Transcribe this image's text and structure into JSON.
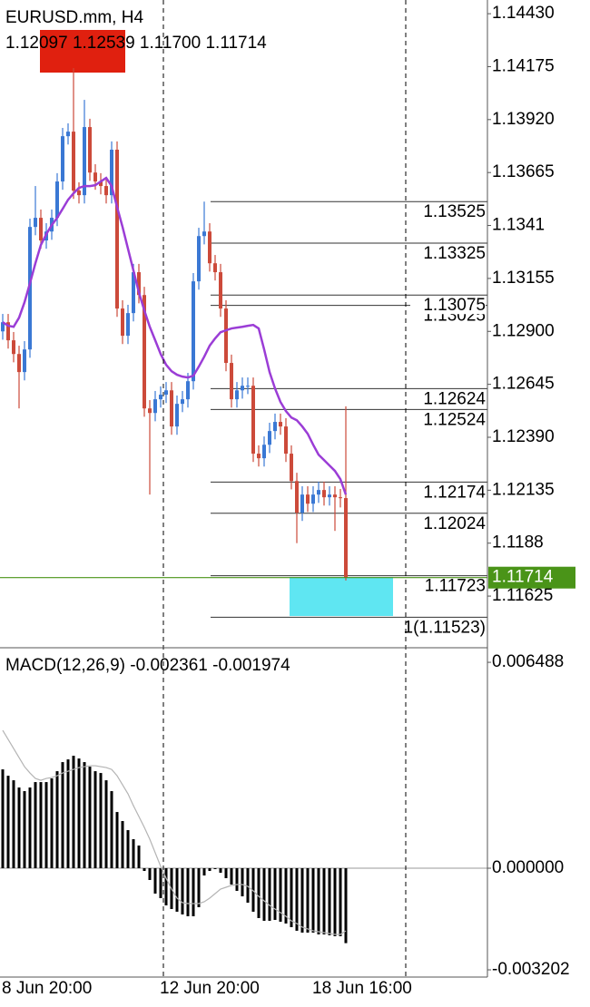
{
  "chart_data": [
    {
      "type": "candlestick",
      "title": "EURUSD.mm, H4",
      "subtitle": "1.12097 1.12539 1.11700 1.11714",
      "open": [
        1.129,
        1.12944,
        1.12857,
        1.12791,
        1.12704,
        1.12813,
        1.13403,
        1.13447,
        1.13338,
        1.13381,
        1.13447,
        1.13622,
        1.1384,
        1.13862,
        1.13578,
        1.13556,
        1.13884,
        1.13665,
        1.13622,
        1.136,
        1.13556,
        1.13775,
        1.1301,
        1.12879,
        1.12988,
        1.13185,
        1.13075,
        1.12529,
        1.12507,
        1.12573,
        1.12595,
        1.12616,
        1.12442,
        1.12551,
        1.12573,
        1.1266,
        1.13141,
        1.13359,
        1.13381,
        1.13228,
        1.13185,
        1.1301,
        1.12748,
        1.12573,
        1.12616,
        1.12638,
        1.12638,
        1.12311,
        1.12289,
        1.12354,
        1.1242,
        1.12464,
        1.12442,
        1.12311,
        1.12179,
        1.12027,
        1.12114,
        1.1207,
        1.12114,
        1.12136,
        1.12101,
        1.12114,
        1.12101,
        1.12097
      ],
      "high": [
        1.12984,
        1.12984,
        1.12897,
        1.12831,
        1.12853,
        1.13443,
        1.136,
        1.13487,
        1.13421,
        1.13487,
        1.13662,
        1.1388,
        1.13902,
        1.14168,
        1.13618,
        1.14015,
        1.13924,
        1.13705,
        1.13662,
        1.1364,
        1.13815,
        1.13815,
        1.1305,
        1.13028,
        1.13225,
        1.13225,
        1.13115,
        1.12569,
        1.12613,
        1.12635,
        1.12656,
        1.12656,
        1.12591,
        1.12613,
        1.127,
        1.13181,
        1.13399,
        1.13525,
        1.13421,
        1.13268,
        1.13225,
        1.1305,
        1.12788,
        1.12656,
        1.12678,
        1.12678,
        1.12678,
        1.12351,
        1.12394,
        1.1246,
        1.12504,
        1.12504,
        1.12482,
        1.12351,
        1.12219,
        1.12154,
        1.12154,
        1.12154,
        1.12176,
        1.12176,
        1.12154,
        1.12154,
        1.12141,
        1.12539
      ],
      "low": [
        1.1286,
        1.12817,
        1.12751,
        1.12529,
        1.12664,
        1.12773,
        1.13363,
        1.13298,
        1.13298,
        1.13341,
        1.13407,
        1.13582,
        1.138,
        1.13538,
        1.13516,
        1.13516,
        1.13625,
        1.13582,
        1.1356,
        1.13516,
        1.13516,
        1.1297,
        1.12839,
        1.12839,
        1.12948,
        1.13035,
        1.12489,
        1.12114,
        1.12467,
        1.12533,
        1.12555,
        1.12402,
        1.12402,
        1.12511,
        1.12533,
        1.1262,
        1.13101,
        1.13319,
        1.13188,
        1.13145,
        1.1297,
        1.12708,
        1.12533,
        1.12533,
        1.12576,
        1.12598,
        1.12271,
        1.12249,
        1.12249,
        1.12314,
        1.1238,
        1.12402,
        1.12271,
        1.12139,
        1.1188,
        1.11987,
        1.1203,
        1.1203,
        1.12074,
        1.12061,
        1.12061,
        1.11939,
        1.12052,
        1.117
      ],
      "close": [
        1.12944,
        1.12857,
        1.12791,
        1.12704,
        1.12813,
        1.13403,
        1.13447,
        1.13338,
        1.13381,
        1.13447,
        1.13622,
        1.1384,
        1.13862,
        1.13578,
        1.13556,
        1.13884,
        1.13665,
        1.13622,
        1.136,
        1.13556,
        1.13775,
        1.1301,
        1.12879,
        1.12988,
        1.13185,
        1.13075,
        1.12529,
        1.12507,
        1.12573,
        1.12595,
        1.12616,
        1.12442,
        1.12551,
        1.12573,
        1.1266,
        1.13141,
        1.13359,
        1.13381,
        1.13228,
        1.13185,
        1.1301,
        1.12748,
        1.12573,
        1.12616,
        1.12638,
        1.12638,
        1.12311,
        1.12289,
        1.12354,
        1.1242,
        1.12464,
        1.12442,
        1.12311,
        1.12179,
        1.12027,
        1.12114,
        1.1207,
        1.12114,
        1.12136,
        1.12101,
        1.12114,
        1.12101,
        1.12097,
        1.11714
      ],
      "up_color": "#3a78d4",
      "down_color": "#cc4a3a",
      "overlay": {
        "color": "#9b3dd6",
        "values": [
          1.12944,
          1.12927,
          1.12922,
          1.12966,
          1.1304,
          1.13132,
          1.13228,
          1.13316,
          1.13368,
          1.13412,
          1.13447,
          1.1349,
          1.13534,
          1.13565,
          1.13591,
          1.136,
          1.136,
          1.13604,
          1.13622,
          1.13639,
          1.136,
          1.13499,
          1.13403,
          1.13298,
          1.13193,
          1.13088,
          1.13001,
          1.12922,
          1.12857,
          1.12791,
          1.12739,
          1.12708,
          1.12691,
          1.12682,
          1.12678,
          1.12686,
          1.1273,
          1.12778,
          1.12831,
          1.12866,
          1.12896,
          1.12905,
          1.12914,
          1.12918,
          1.12922,
          1.12927,
          1.12931,
          1.12914,
          1.12813,
          1.12704,
          1.12625,
          1.1256,
          1.12516,
          1.12485,
          1.12472,
          1.12442,
          1.12407,
          1.12354,
          1.12306,
          1.1228,
          1.12254,
          1.12228,
          1.12188,
          1.12114
        ]
      },
      "fib_levels": [
        1.13525,
        1.13325,
        1.13025,
        1.13075,
        1.12624,
        1.12524,
        1.12174,
        1.12024,
        1.11723,
        {
          "value": 1.11523,
          "label": "1(1.11523)"
        }
      ],
      "bid": 1.11714,
      "bid_color": "#4a9418",
      "ylim": [
        1.11385,
        1.14496
      ],
      "yticks": [
        {
          "value": 1.1443,
          "label": "1.14430"
        },
        1.14175,
        {
          "value": 1.1392,
          "label": "1.13920"
        },
        1.13665,
        1.1341,
        1.13155,
        {
          "value": 1.129,
          "label": "1.12900"
        },
        1.12645,
        {
          "value": 1.1239,
          "label": "1.12390"
        },
        1.12135,
        1.1188,
        1.11625
      ],
      "xticks": [
        {
          "value": 0,
          "label": "8 Jun 20:00"
        },
        {
          "value": 29,
          "label": "12 Jun 20:00"
        },
        {
          "value": 57,
          "label": "18 Jun 16:00"
        }
      ]
    },
    {
      "type": "macd",
      "title": "MACD(12,26,9) -0.002361 -0.001974",
      "histogram": {
        "color": "#000000",
        "values": [
          0.003114,
          0.002914,
          0.002771,
          0.002543,
          0.002429,
          0.002543,
          0.002714,
          0.002714,
          0.002714,
          0.002829,
          0.003057,
          0.003343,
          0.003429,
          0.003543,
          0.003457,
          0.003343,
          0.0032,
          0.003057,
          0.003,
          0.002771,
          0.002429,
          0.001771,
          0.001486,
          0.0012,
          0.000914,
          0.000714,
          -8.6e-05,
          -0.000371,
          -0.0008,
          -0.000943,
          -0.001171,
          -0.001286,
          -0.001371,
          -0.001457,
          -0.001514,
          -0.001514,
          -0.001229,
          -0.000229,
          -8.6e-05,
          -2.9e-05,
          -0.000143,
          -0.000314,
          -0.000514,
          -0.000714,
          -0.000886,
          -0.001086,
          -0.001371,
          -0.001571,
          -0.001657,
          -0.001657,
          -0.001629,
          -0.001686,
          -0.001743,
          -0.001857,
          -0.001971,
          -0.002029,
          -0.002029,
          -0.002029,
          -0.002086,
          -0.002086,
          -0.002114,
          -0.002143,
          -0.002143,
          -0.002361
        ]
      },
      "signal": {
        "color": "#b4b4b4",
        "values": [
          0.004343,
          0.004057,
          0.003771,
          0.003486,
          0.0032,
          0.003,
          0.002829,
          0.002771,
          0.002829,
          0.002857,
          0.002914,
          0.003,
          0.003057,
          0.003114,
          0.003171,
          0.0032,
          0.003229,
          0.003229,
          0.0032,
          0.003171,
          0.003114,
          0.002914,
          0.002629,
          0.002343,
          0.001971,
          0.001629,
          0.001286,
          0.000914,
          0.000486,
          5.7e-05,
          -0.000314,
          -0.000657,
          -0.000943,
          -0.001086,
          -0.001114,
          -0.001114,
          -0.001114,
          -0.001057,
          -0.000943,
          -0.0008,
          -0.000657,
          -0.0006,
          -0.000543,
          -0.000514,
          -0.000514,
          -0.000571,
          -0.000714,
          -0.000886,
          -0.001029,
          -0.001171,
          -0.001286,
          -0.0014,
          -0.001514,
          -0.001657,
          -0.001743,
          -0.001857,
          -0.001914,
          -0.001971,
          -0.002,
          -0.002029,
          -0.002057,
          -0.002086,
          -0.002086,
          -0.001974
        ]
      },
      "ylim": [
        -0.00343,
        0.00689
      ],
      "yticks": [
        0.006488,
        {
          "value": 0,
          "label": "0.000000"
        },
        -0.003202
      ]
    }
  ]
}
